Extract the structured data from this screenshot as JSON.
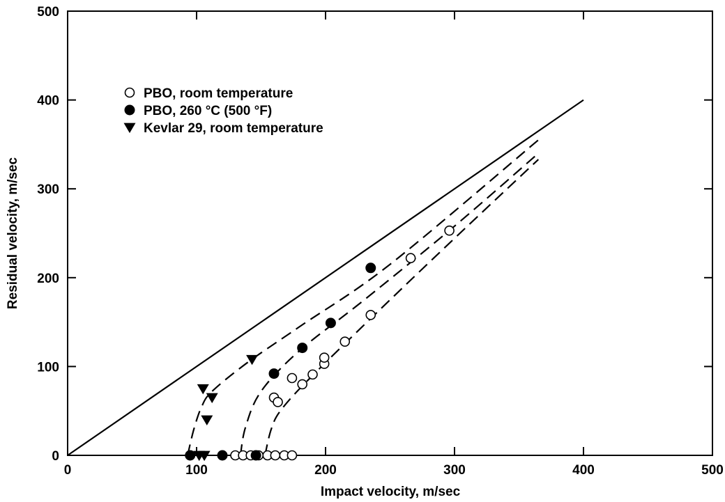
{
  "chart_data": {
    "type": "scatter",
    "title": "",
    "xlabel": "Impact velocity, m/sec",
    "ylabel": "Residual velocity, m/sec",
    "xlim": [
      0,
      500
    ],
    "ylim": [
      0,
      500
    ],
    "xticks": [
      0,
      100,
      200,
      300,
      400,
      500
    ],
    "yticks": [
      0,
      100,
      200,
      300,
      400,
      500
    ],
    "grid": false,
    "legend_position": "top-left",
    "series": [
      {
        "name": "PBO, room temperature",
        "marker": "open-circle",
        "points": [
          [
            130,
            0
          ],
          [
            136,
            0
          ],
          [
            142,
            0
          ],
          [
            148,
            0
          ],
          [
            155,
            0
          ],
          [
            161,
            0
          ],
          [
            168,
            0
          ],
          [
            174,
            0
          ],
          [
            160,
            65
          ],
          [
            163,
            60
          ],
          [
            174,
            87
          ],
          [
            182,
            80
          ],
          [
            190,
            91
          ],
          [
            199,
            103
          ],
          [
            199,
            110
          ],
          [
            215,
            128
          ],
          [
            235,
            158
          ],
          [
            266,
            222
          ],
          [
            296,
            253
          ]
        ]
      },
      {
        "name": "PBO, 260 °C (500 °F)",
        "marker": "filled-circle",
        "points": [
          [
            95,
            0
          ],
          [
            120,
            0
          ],
          [
            146,
            0
          ],
          [
            160,
            92
          ],
          [
            182,
            121
          ],
          [
            204,
            149
          ],
          [
            235,
            211
          ]
        ]
      },
      {
        "name": "Kevlar 29, room temperature",
        "marker": "filled-triangle-down",
        "points": [
          [
            102,
            0
          ],
          [
            106,
            0
          ],
          [
            108,
            40
          ],
          [
            105,
            75
          ],
          [
            112,
            65
          ],
          [
            143,
            108
          ]
        ]
      }
    ],
    "reference_line": {
      "style": "solid",
      "points": [
        [
          0,
          0
        ],
        [
          400,
          400
        ]
      ]
    },
    "fit_curves": [
      {
        "style": "dashed",
        "points": [
          [
            93,
            0
          ],
          [
            98,
            30
          ],
          [
            104,
            55
          ],
          [
            112,
            72
          ],
          [
            140,
            105
          ],
          [
            180,
            145
          ],
          [
            250,
            215
          ],
          [
            365,
            355
          ]
        ]
      },
      {
        "style": "dashed",
        "points": [
          [
            134,
            0
          ],
          [
            138,
            32
          ],
          [
            150,
            72
          ],
          [
            180,
            118
          ],
          [
            230,
            175
          ],
          [
            300,
            258
          ],
          [
            365,
            340
          ]
        ]
      },
      {
        "style": "dashed",
        "points": [
          [
            153,
            0
          ],
          [
            158,
            30
          ],
          [
            166,
            52
          ],
          [
            190,
            90
          ],
          [
            250,
            175
          ],
          [
            310,
            258
          ],
          [
            365,
            333
          ]
        ]
      }
    ]
  }
}
